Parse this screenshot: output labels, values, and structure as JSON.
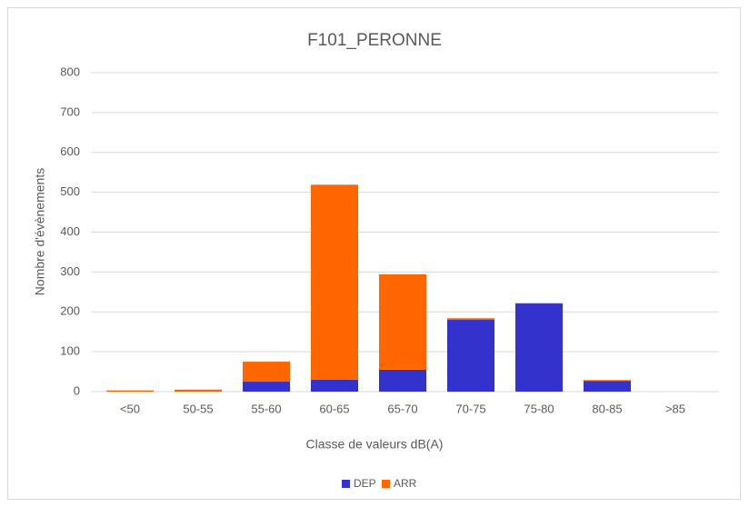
{
  "chart_data": {
    "type": "stacked_bar",
    "title": "F101_PERONNE",
    "x_label": "Classe de valeurs dB(A)",
    "y_label": "Nombre d'évènements",
    "categories": [
      "<50",
      "50-55",
      "55-60",
      "60-65",
      "65-70",
      "70-75",
      "75-80",
      "80-85",
      ">85"
    ],
    "series": [
      {
        "name": "DEP",
        "color": "#3333cc",
        "values": [
          0,
          0,
          25,
          30,
          55,
          180,
          221,
          27,
          0
        ]
      },
      {
        "name": "ARR",
        "color": "#ff6600",
        "values": [
          3,
          5,
          50,
          489,
          239,
          4,
          1,
          2,
          0
        ]
      }
    ],
    "ylim": [
      0,
      800
    ],
    "yticks": [
      0,
      100,
      200,
      300,
      400,
      500,
      600,
      700,
      800
    ],
    "grid": true,
    "legend": "bottom"
  }
}
